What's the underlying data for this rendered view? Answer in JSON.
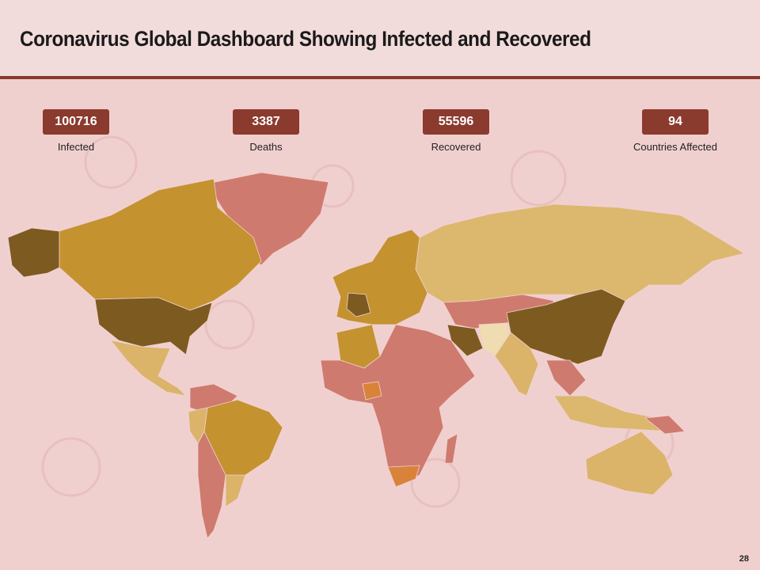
{
  "header": {
    "title": "Coronavirus Global Dashboard Showing Infected and Recovered"
  },
  "stats": [
    {
      "value": 100716,
      "label": "Infected"
    },
    {
      "value": 3387,
      "label": "Deaths"
    },
    {
      "value": 55596,
      "label": "Recovered"
    },
    {
      "value": 94,
      "label": "Countries Affected"
    }
  ],
  "footer": {
    "page_number": 28
  }
}
